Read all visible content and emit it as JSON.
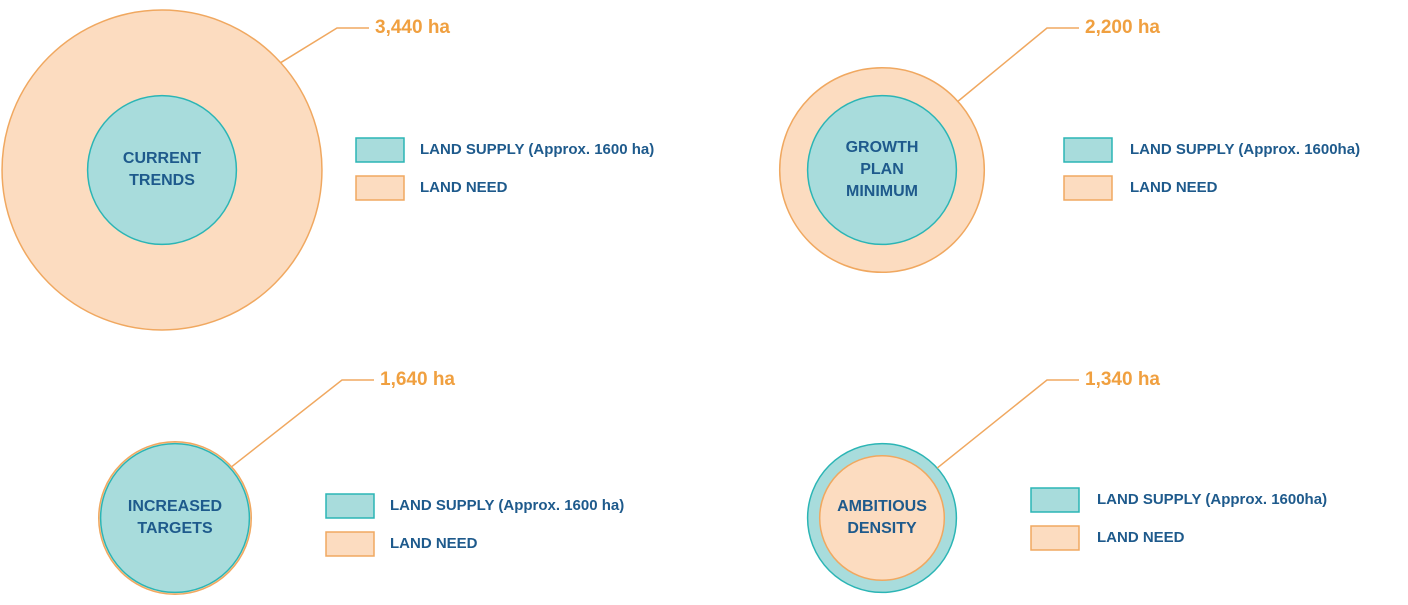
{
  "chart_data": [
    {
      "type": "bubble",
      "label": [
        "CURRENT",
        "TRENDS"
      ],
      "series": [
        {
          "name": "LAND SUPPLY (Approx. 1600 ha)",
          "color": "#a8dcdc",
          "values": [
            1600
          ]
        },
        {
          "name": "LAND NEED",
          "color": "#fcdcc0",
          "values": [
            3440
          ],
          "value_labels": [
            "3,440 ha"
          ]
        }
      ]
    },
    {
      "type": "bubble",
      "label": [
        "GROWTH",
        "PLAN",
        "MINIMUM"
      ],
      "series": [
        {
          "name": "LAND SUPPLY (Approx. 1600ha)",
          "color": "#a8dcdc",
          "values": [
            1600
          ]
        },
        {
          "name": "LAND NEED",
          "color": "#fcdcc0",
          "values": [
            2200
          ],
          "value_labels": [
            "2,200 ha"
          ]
        }
      ]
    },
    {
      "type": "bubble",
      "label": [
        "INCREASED",
        "TARGETS"
      ],
      "series": [
        {
          "name": "LAND SUPPLY (Approx. 1600 ha)",
          "color": "#a8dcdc",
          "values": [
            1600
          ]
        },
        {
          "name": "LAND NEED",
          "color": "#fcdcc0",
          "values": [
            1640
          ],
          "value_labels": [
            "1,640 ha"
          ]
        }
      ]
    },
    {
      "type": "bubble",
      "label": [
        "AMBITIOUS",
        "DENSITY"
      ],
      "series": [
        {
          "name": "LAND SUPPLY (Approx. 1600ha)",
          "color": "#a8dcdc",
          "values": [
            1600
          ]
        },
        {
          "name": "LAND NEED",
          "color": "#fcdcc0",
          "values": [
            1340
          ],
          "value_labels": [
            "1,340 ha"
          ]
        }
      ]
    }
  ]
}
